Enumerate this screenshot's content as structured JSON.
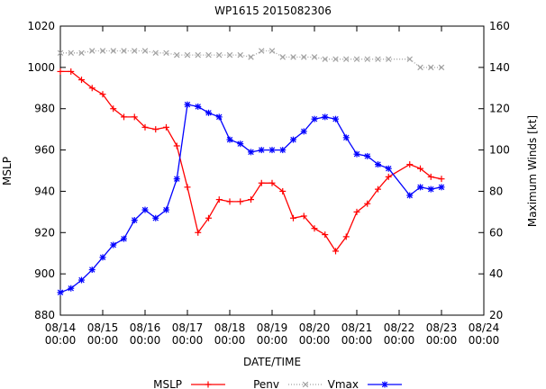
{
  "chart_data": {
    "type": "line",
    "title": "WP1615 2015082306",
    "xlabel": "DATE/TIME",
    "ylabel_left": "MSLP",
    "ylabel_right": "Maximum Winds [kt]",
    "x_ticks": [
      {
        "d1": "08/14",
        "d2": "00:00"
      },
      {
        "d1": "08/15",
        "d2": "00:00"
      },
      {
        "d1": "08/16",
        "d2": "00:00"
      },
      {
        "d1": "08/17",
        "d2": "00:00"
      },
      {
        "d1": "08/18",
        "d2": "00:00"
      },
      {
        "d1": "08/19",
        "d2": "00:00"
      },
      {
        "d1": "08/20",
        "d2": "00:00"
      },
      {
        "d1": "08/21",
        "d2": "00:00"
      },
      {
        "d1": "08/22",
        "d2": "00:00"
      },
      {
        "d1": "08/23",
        "d2": "00:00"
      },
      {
        "d1": "08/24",
        "d2": "00:00"
      }
    ],
    "xlim_days": [
      14,
      24
    ],
    "ylim_left": [
      880,
      1020
    ],
    "yticks_left": [
      880,
      900,
      920,
      940,
      960,
      980,
      1000,
      1020
    ],
    "ylim_right": [
      20,
      160
    ],
    "yticks_right": [
      20,
      40,
      60,
      80,
      100,
      120,
      140,
      160
    ],
    "grid": false,
    "legend_placement": "bottom",
    "series": [
      {
        "name": "MSLP",
        "axis": "left",
        "color": "#ff0000",
        "marker": "plus",
        "values": [
          [
            14.0,
            998
          ],
          [
            14.25,
            998
          ],
          [
            14.5,
            994
          ],
          [
            14.75,
            990
          ],
          [
            15.0,
            987
          ],
          [
            15.25,
            980
          ],
          [
            15.5,
            976
          ],
          [
            15.75,
            976
          ],
          [
            16.0,
            971
          ],
          [
            16.25,
            970
          ],
          [
            16.5,
            971
          ],
          [
            16.75,
            962
          ],
          [
            17.0,
            942
          ],
          [
            17.25,
            920
          ],
          [
            17.5,
            927
          ],
          [
            17.75,
            936
          ],
          [
            18.0,
            935
          ],
          [
            18.25,
            935
          ],
          [
            18.5,
            936
          ],
          [
            18.75,
            944
          ],
          [
            19.0,
            944
          ],
          [
            19.25,
            940
          ],
          [
            19.5,
            927
          ],
          [
            19.75,
            928
          ],
          [
            20.0,
            922
          ],
          [
            20.25,
            919
          ],
          [
            20.5,
            911
          ],
          [
            20.75,
            918
          ],
          [
            21.0,
            930
          ],
          [
            21.25,
            934
          ],
          [
            21.5,
            941
          ],
          [
            21.75,
            947
          ],
          [
            22.25,
            953
          ],
          [
            22.5,
            951
          ],
          [
            22.75,
            947
          ],
          [
            23.0,
            946
          ]
        ]
      },
      {
        "name": "Penv",
        "axis": "left",
        "color": "#a0a0a0",
        "marker": "x",
        "values": [
          [
            14.0,
            1007
          ],
          [
            14.25,
            1007
          ],
          [
            14.5,
            1007
          ],
          [
            14.75,
            1008
          ],
          [
            15.0,
            1008
          ],
          [
            15.25,
            1008
          ],
          [
            15.5,
            1008
          ],
          [
            15.75,
            1008
          ],
          [
            16.0,
            1008
          ],
          [
            16.25,
            1007
          ],
          [
            16.5,
            1007
          ],
          [
            16.75,
            1006
          ],
          [
            17.0,
            1006
          ],
          [
            17.25,
            1006
          ],
          [
            17.5,
            1006
          ],
          [
            17.75,
            1006
          ],
          [
            18.0,
            1006
          ],
          [
            18.25,
            1006
          ],
          [
            18.5,
            1005
          ],
          [
            18.75,
            1008
          ],
          [
            19.0,
            1008
          ],
          [
            19.25,
            1005
          ],
          [
            19.5,
            1005
          ],
          [
            19.75,
            1005
          ],
          [
            20.0,
            1005
          ],
          [
            20.25,
            1004
          ],
          [
            20.5,
            1004
          ],
          [
            20.75,
            1004
          ],
          [
            21.0,
            1004
          ],
          [
            21.25,
            1004
          ],
          [
            21.5,
            1004
          ],
          [
            21.75,
            1004
          ],
          [
            22.25,
            1004
          ],
          [
            22.5,
            1000
          ],
          [
            22.75,
            1000
          ],
          [
            23.0,
            1000
          ]
        ]
      },
      {
        "name": "Vmax",
        "axis": "right",
        "color": "#0000ff",
        "marker": "star",
        "values": [
          [
            14.0,
            31
          ],
          [
            14.25,
            33
          ],
          [
            14.5,
            37
          ],
          [
            14.75,
            42
          ],
          [
            15.0,
            48
          ],
          [
            15.25,
            54
          ],
          [
            15.5,
            57
          ],
          [
            15.75,
            66
          ],
          [
            16.0,
            71
          ],
          [
            16.25,
            67
          ],
          [
            16.5,
            71
          ],
          [
            16.75,
            86
          ],
          [
            17.0,
            122
          ],
          [
            17.25,
            121
          ],
          [
            17.5,
            118
          ],
          [
            17.75,
            116
          ],
          [
            18.0,
            105
          ],
          [
            18.25,
            103
          ],
          [
            18.5,
            99
          ],
          [
            18.75,
            100
          ],
          [
            19.0,
            100
          ],
          [
            19.25,
            100
          ],
          [
            19.5,
            105
          ],
          [
            19.75,
            109
          ],
          [
            20.0,
            115
          ],
          [
            20.25,
            116
          ],
          [
            20.5,
            115
          ],
          [
            20.75,
            106
          ],
          [
            21.0,
            98
          ],
          [
            21.25,
            97
          ],
          [
            21.5,
            93
          ],
          [
            21.75,
            91
          ],
          [
            22.25,
            78
          ],
          [
            22.5,
            82
          ],
          [
            22.75,
            81
          ],
          [
            23.0,
            82
          ]
        ]
      }
    ]
  }
}
